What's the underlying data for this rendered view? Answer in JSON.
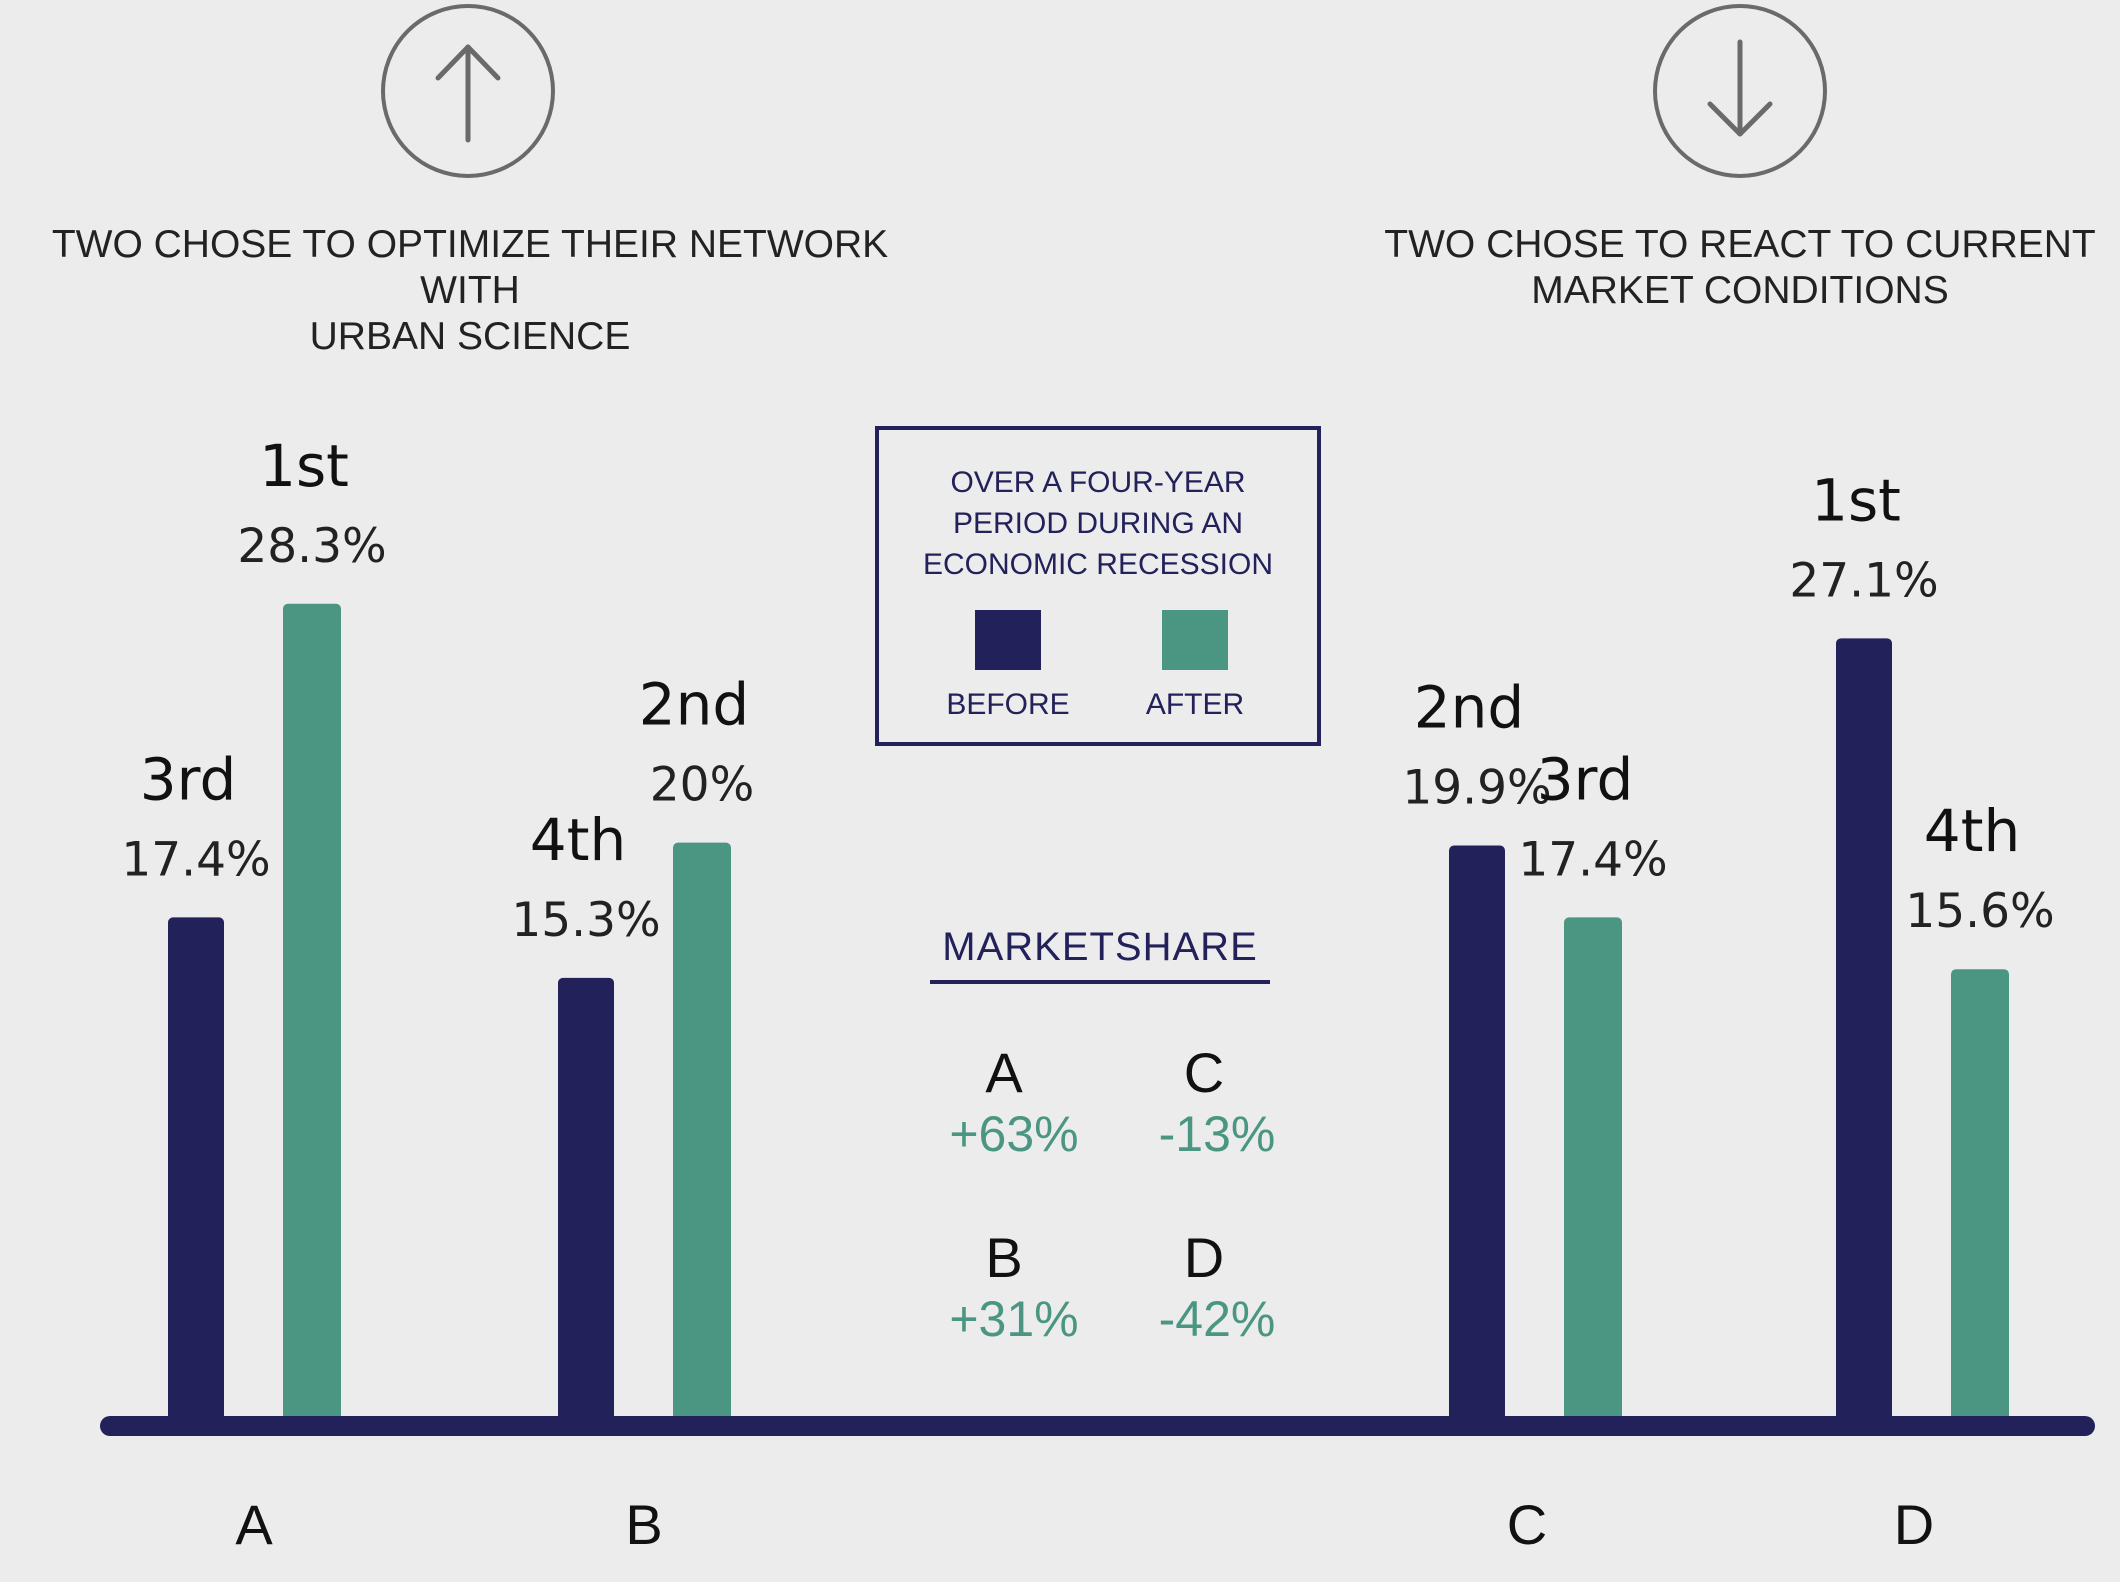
{
  "headings": {
    "left": "TWO CHOSE TO OPTIMIZE THEIR NETWORK WITH\nURBAN SCIENCE",
    "right": "TWO CHOSE TO REACT TO CURRENT\nMARKET CONDITIONS"
  },
  "icons": {
    "left": "arrow-up-circle-icon",
    "right": "arrow-down-circle-icon"
  },
  "legend": {
    "title": "OVER A FOUR-YEAR\nPERIOD DURING AN\nECONOMIC RECESSION",
    "before_label": "BEFORE",
    "after_label": "AFTER"
  },
  "marketshare": {
    "title": "MARKETSHARE",
    "items": [
      {
        "letter": "A",
        "change": "+63%"
      },
      {
        "letter": "C",
        "change": "-13%"
      },
      {
        "letter": "B",
        "change": "+31%"
      },
      {
        "letter": "D",
        "change": "-42%"
      }
    ]
  },
  "colors": {
    "before": "#22215a",
    "after": "#4a9682",
    "background": "#ececec",
    "baseline": "#22215a"
  },
  "chart_data": {
    "type": "bar",
    "categories": [
      "A",
      "B",
      "C",
      "D"
    ],
    "series": [
      {
        "name": "BEFORE",
        "values": [
          17.4,
          15.3,
          19.9,
          27.1
        ],
        "ranks": [
          "3rd",
          "4th",
          "2nd",
          "1st"
        ],
        "labels": [
          "17.4%",
          "15.3%",
          "19.9%",
          "27.1%"
        ]
      },
      {
        "name": "AFTER",
        "values": [
          28.3,
          20,
          17.4,
          15.6
        ],
        "ranks": [
          "1st",
          "2nd",
          "3rd",
          "4th"
        ],
        "labels": [
          "28.3%",
          "20%",
          "17.4%",
          "15.6%"
        ]
      }
    ],
    "unit": "%",
    "legend_position": "center"
  }
}
